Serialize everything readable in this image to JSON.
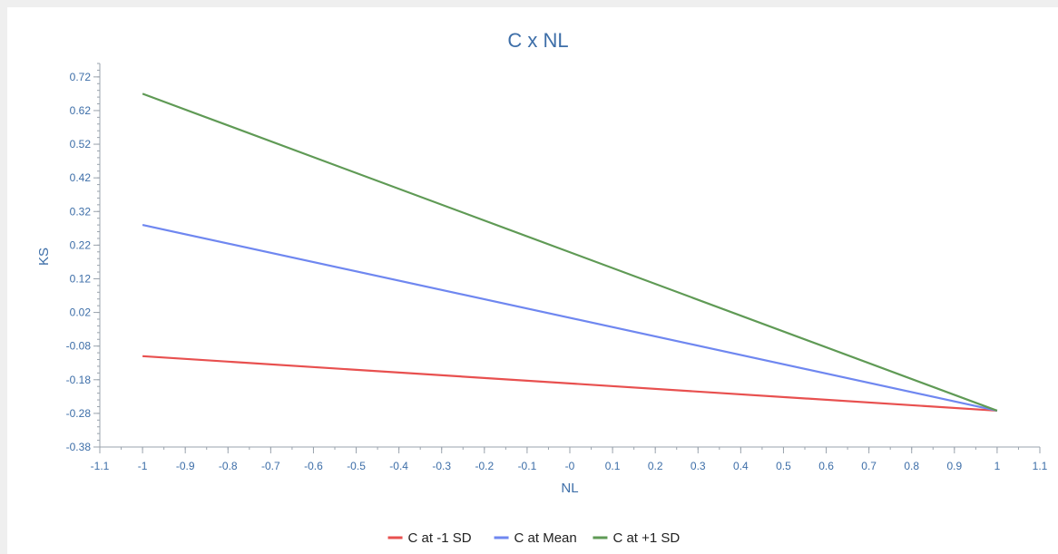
{
  "chart_data": {
    "type": "line",
    "title": "C x NL",
    "xlabel": "NL",
    "ylabel": "KS",
    "xlim": [
      -1.1,
      1.1
    ],
    "ylim": [
      -0.38,
      0.76
    ],
    "x_ticks": [
      "-1.1",
      "-1",
      "-0.9",
      "-0.8",
      "-0.7",
      "-0.6",
      "-0.5",
      "-0.4",
      "-0.3",
      "-0.2",
      "-0.1",
      "-0",
      "0.1",
      "0.2",
      "0.3",
      "0.4",
      "0.5",
      "0.6",
      "0.7",
      "0.8",
      "0.9",
      "1",
      "1.1"
    ],
    "y_ticks": [
      "-0.38",
      "-0.28",
      "-0.18",
      "-0.08",
      "0.02",
      "0.12",
      "0.22",
      "0.32",
      "0.42",
      "0.52",
      "0.62",
      "0.72"
    ],
    "grid": false,
    "legend_position": "bottom-center",
    "series": [
      {
        "name": "C at -1 SD",
        "color": "#e8504f",
        "x": [
          -1,
          1
        ],
        "y": [
          -0.11,
          -0.272
        ]
      },
      {
        "name": "C at Mean",
        "color": "#6f87f0",
        "x": [
          -1,
          1
        ],
        "y": [
          0.28,
          -0.272
        ]
      },
      {
        "name": "C at +1 SD",
        "color": "#5f9a55",
        "x": [
          -1,
          1
        ],
        "y": [
          0.67,
          -0.272
        ]
      }
    ]
  }
}
